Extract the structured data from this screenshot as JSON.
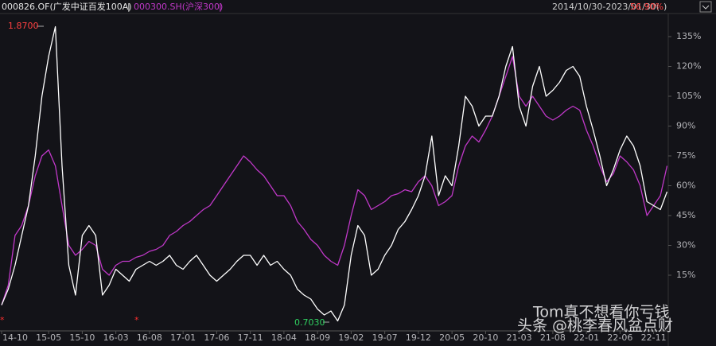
{
  "header": {
    "fund": "000826.OF(广发中证百发100A)",
    "sep1": "|",
    "index": "000300.SH(沪深300)",
    "sep2": "|",
    "range": "2014/10/30-2023/01/30(",
    "change": "56.90%",
    "range_end": ")"
  },
  "watermark": {
    "line1": "Tom真不想看你亏钱",
    "line2": "头条 @桃李春风盆点财"
  },
  "annotations": {
    "max": "1.8700",
    "min": "0.7030"
  },
  "chart_data": {
    "type": "line",
    "categories": [
      "14-10",
      null,
      null,
      null,
      null,
      null,
      null,
      "15-05",
      null,
      null,
      null,
      null,
      "15-10",
      null,
      null,
      null,
      null,
      "16-03",
      null,
      null,
      null,
      null,
      "16-08",
      null,
      null,
      null,
      null,
      "17-01",
      null,
      null,
      null,
      null,
      "17-06",
      null,
      null,
      null,
      null,
      "17-11",
      null,
      null,
      null,
      null,
      "18-04",
      null,
      null,
      null,
      null,
      "18-09",
      null,
      null,
      null,
      null,
      "19-02",
      null,
      null,
      null,
      null,
      "19-07",
      null,
      null,
      null,
      null,
      "19-12",
      null,
      null,
      null,
      null,
      "20-05",
      null,
      null,
      null,
      null,
      "20-10",
      null,
      null,
      null,
      null,
      "21-03",
      null,
      null,
      null,
      null,
      "21-08",
      null,
      null,
      null,
      null,
      "22-01",
      null,
      null,
      null,
      null,
      "22-06",
      null,
      null,
      null,
      null,
      "22-11",
      null,
      null
    ],
    "series": [
      {
        "name": "000826.OF(广发中证百发100A)",
        "color": "#ffffff",
        "values": [
          0,
          8,
          20,
          35,
          50,
          75,
          105,
          125,
          140,
          70,
          20,
          5,
          35,
          40,
          35,
          5,
          10,
          18,
          15,
          12,
          18,
          20,
          22,
          20,
          22,
          25,
          20,
          18,
          22,
          25,
          20,
          15,
          12,
          15,
          18,
          22,
          25,
          25,
          20,
          25,
          20,
          22,
          18,
          15,
          8,
          5,
          3,
          -2,
          -5,
          -3,
          -8,
          0,
          25,
          40,
          35,
          15,
          18,
          25,
          30,
          38,
          42,
          48,
          55,
          65,
          85,
          55,
          65,
          60,
          80,
          105,
          100,
          90,
          95,
          95,
          105,
          120,
          130,
          100,
          90,
          110,
          120,
          105,
          108,
          112,
          118,
          120,
          115,
          100,
          88,
          75,
          60,
          68,
          78,
          85,
          80,
          70,
          52,
          50,
          48,
          57
        ]
      },
      {
        "name": "000300.SH(沪深300)",
        "color": "#c038c8",
        "values": [
          0,
          10,
          35,
          40,
          50,
          65,
          75,
          78,
          70,
          50,
          30,
          25,
          28,
          32,
          30,
          18,
          15,
          20,
          22,
          22,
          24,
          25,
          27,
          28,
          30,
          35,
          37,
          40,
          42,
          45,
          48,
          50,
          55,
          60,
          65,
          70,
          75,
          72,
          68,
          65,
          60,
          55,
          55,
          50,
          42,
          38,
          33,
          30,
          25,
          22,
          20,
          30,
          45,
          58,
          55,
          48,
          50,
          52,
          55,
          56,
          58,
          57,
          62,
          65,
          60,
          50,
          52,
          55,
          70,
          80,
          85,
          82,
          88,
          95,
          105,
          115,
          125,
          105,
          100,
          105,
          100,
          95,
          93,
          95,
          98,
          100,
          98,
          88,
          80,
          70,
          62,
          66,
          75,
          72,
          68,
          60,
          45,
          50,
          55,
          70
        ]
      }
    ],
    "ylim": [
      -11.4,
      145.4
    ],
    "yticks": [
      {
        "value": 15,
        "label": "15%"
      },
      {
        "value": 30,
        "label": "30%"
      },
      {
        "value": 45,
        "label": "45%"
      },
      {
        "value": 60,
        "label": "60%"
      },
      {
        "value": 75,
        "label": "75%"
      },
      {
        "value": 90,
        "label": "90%"
      },
      {
        "value": 105,
        "label": "105%"
      },
      {
        "value": 120,
        "label": "120%"
      },
      {
        "value": 135,
        "label": "135%"
      }
    ],
    "grid": false
  }
}
